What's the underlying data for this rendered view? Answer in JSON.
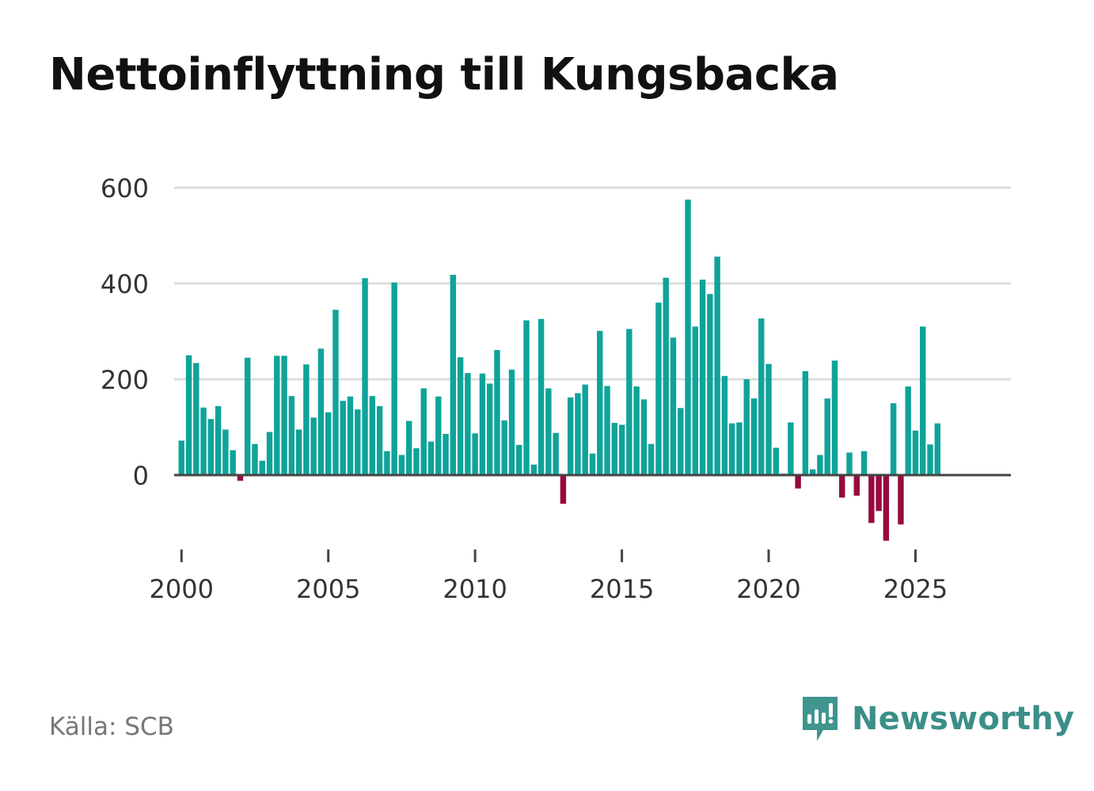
{
  "title": "Nettoinflyttning till Kungsbacka",
  "source": "Källa: SCB",
  "brand": {
    "name": "Newsworthy",
    "logo_icon": "newsworthy-logo-icon",
    "color": "#40958e"
  },
  "colors": {
    "positive": "#0fa39a",
    "negative": "#970a3f",
    "gridline": "#dddddd",
    "baseline": "#444444",
    "axis_text": "#333333"
  },
  "chart_data": {
    "type": "bar",
    "title": "Nettoinflyttning till Kungsbacka",
    "xlabel": "",
    "ylabel": "",
    "frequency": "quarterly",
    "ylim": [
      -160,
      620
    ],
    "yticks": [
      0,
      200,
      400,
      600
    ],
    "ytick_labels": [
      "0",
      "200",
      "400",
      "600"
    ],
    "xticks": [
      2000,
      2005,
      2010,
      2015,
      2020,
      2025
    ],
    "xtick_labels": [
      "2000",
      "2005",
      "2010",
      "2015",
      "2020",
      "2025"
    ],
    "xlim": [
      1999.75,
      2028.25
    ],
    "start": {
      "year": 2000,
      "quarter": 1
    },
    "values": [
      72,
      250,
      234,
      141,
      117,
      144,
      95,
      52,
      -12,
      245,
      65,
      30,
      90,
      249,
      249,
      165,
      95,
      231,
      120,
      264,
      131,
      345,
      155,
      164,
      137,
      411,
      165,
      144,
      50,
      402,
      42,
      113,
      56,
      181,
      70,
      164,
      86,
      418,
      246,
      213,
      87,
      212,
      191,
      261,
      114,
      220,
      63,
      323,
      22,
      326,
      181,
      88,
      -60,
      162,
      171,
      189,
      45,
      301,
      186,
      109,
      105,
      305,
      185,
      158,
      65,
      360,
      412,
      287,
      140,
      575,
      310,
      408,
      378,
      456,
      207,
      108,
      110,
      200,
      160,
      327,
      232,
      57,
      3,
      110,
      -28,
      217,
      12,
      42,
      160,
      239,
      -47,
      47,
      -43,
      50,
      -100,
      -75,
      -137,
      150,
      -103,
      185,
      93,
      310,
      64,
      108
    ]
  }
}
